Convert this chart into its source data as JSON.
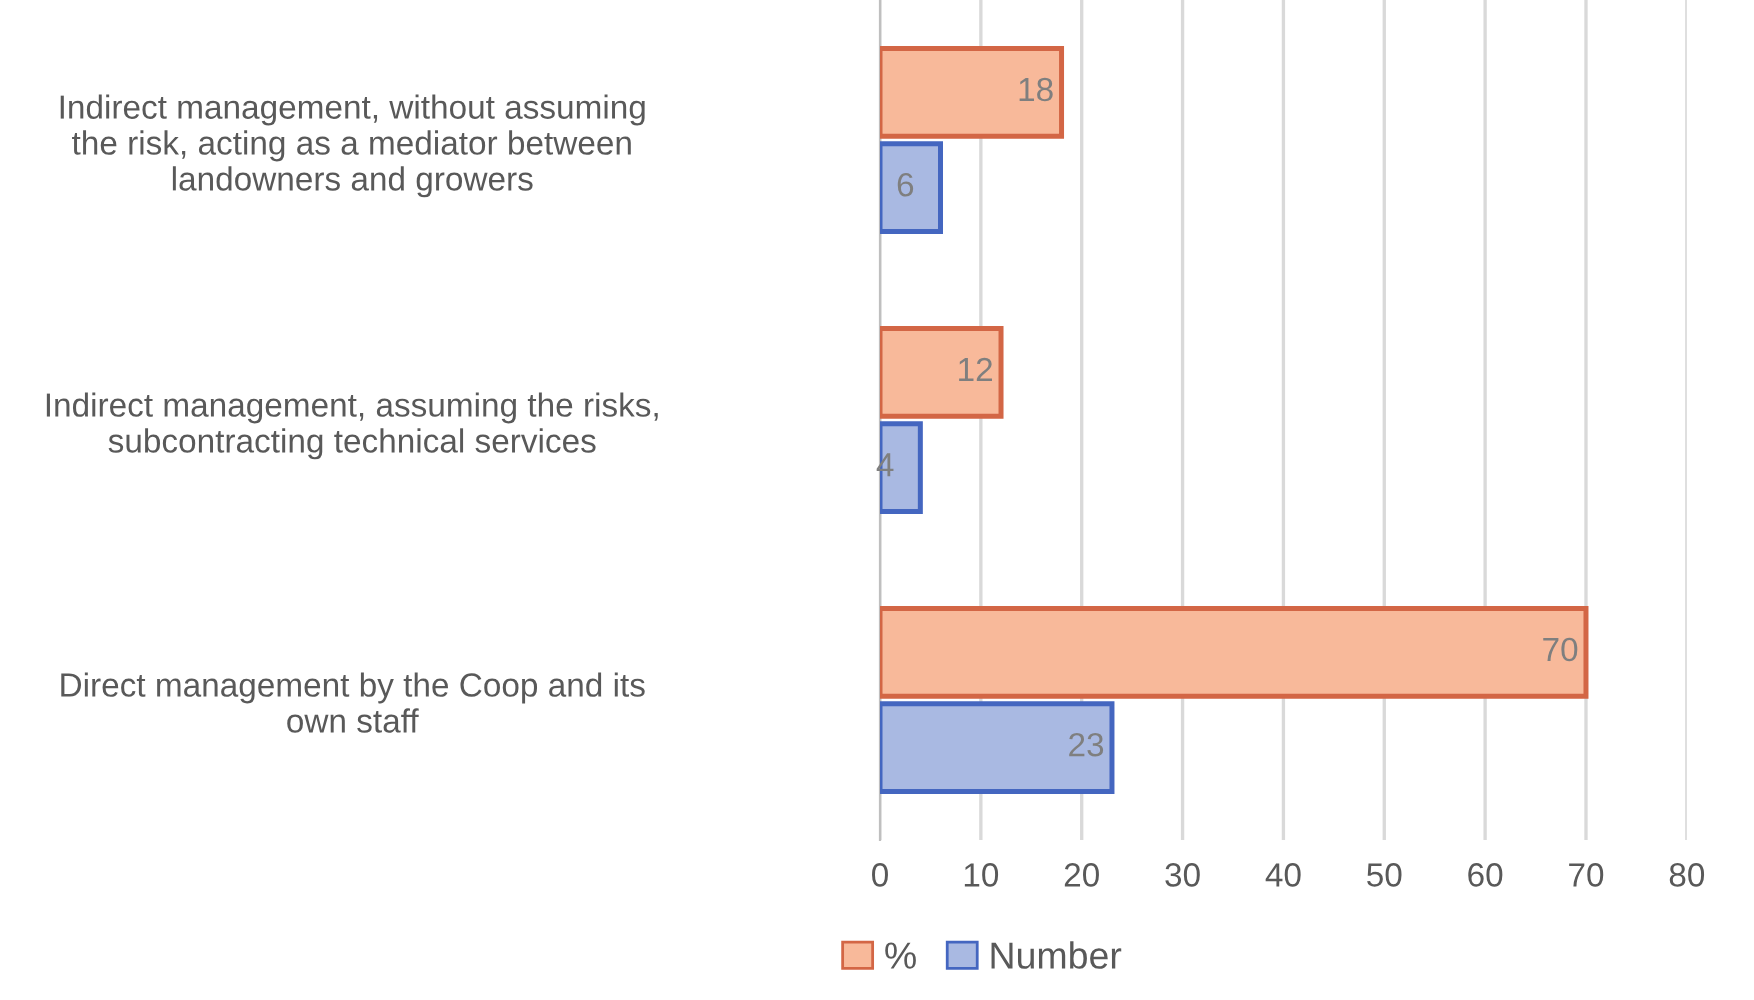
{
  "chart_data": {
    "type": "bar",
    "orientation": "horizontal",
    "categories": [
      "Indirect management, without assuming the risk, acting as a mediator between landowners and growers",
      "Indirect management, assuming the risks, subcontracting technical services",
      "Direct management by the Coop and its own staff"
    ],
    "series": [
      {
        "name": "%",
        "color": "#f8b99a",
        "values": [
          18,
          12,
          70
        ]
      },
      {
        "name": "Number",
        "color": "#a9b9e2",
        "values": [
          6,
          4,
          23
        ]
      }
    ],
    "xlim": [
      0,
      80
    ],
    "xticks": [
      0,
      10,
      20,
      30,
      40,
      50,
      60,
      70,
      80
    ],
    "grid": "x",
    "legend": "bottom",
    "data_labels": true
  }
}
